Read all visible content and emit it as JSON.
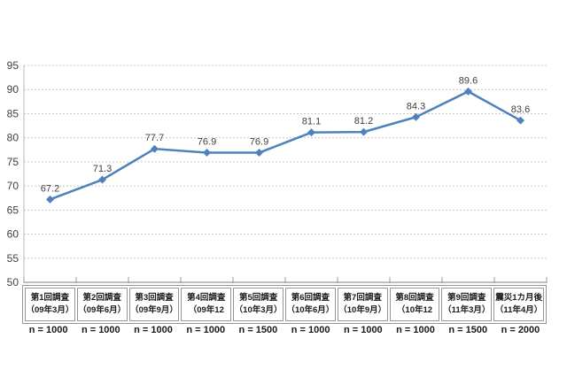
{
  "chart_data": {
    "type": "line",
    "title": "",
    "legend": "none",
    "grid": "horizontal-dashed",
    "marker": "diamond",
    "categories": [
      "第1回調査",
      "第2回調査",
      "第3回調査",
      "第4回調査",
      "第5回調査",
      "第6回調査",
      "第7回調査",
      "第8回調査",
      "第9回調査",
      "震災1カ月後"
    ],
    "category_dates": [
      "（09年3月）",
      "（09年6月）",
      "（09年9月）",
      "（09年12",
      "（10年3月）",
      "（10年6月）",
      "（10年9月）",
      "（10年12",
      "（11年3月）",
      "（11年4月）"
    ],
    "sample_sizes": [
      "n = 1000",
      "n = 1000",
      "n = 1000",
      "n = 1000",
      "n = 1500",
      "n = 1000",
      "n = 1000",
      "n = 1000",
      "n = 1500",
      "n = 2000"
    ],
    "values": [
      67.2,
      71.3,
      77.7,
      76.9,
      76.9,
      81.1,
      81.2,
      84.3,
      89.6,
      83.6
    ],
    "data_labels": [
      "67.2",
      "71.3",
      "77.7",
      "76.9",
      "76.9",
      "81.1",
      "81.2",
      "84.3",
      "89.6",
      "83.6"
    ],
    "ylim": [
      50,
      95
    ],
    "ytick_step": 5,
    "ytick_labels": [
      "50",
      "55",
      "60",
      "65",
      "70",
      "75",
      "80",
      "85",
      "90",
      "95"
    ],
    "colors": {
      "line": "#4f81bd",
      "marker": "#4f81bd",
      "data_label": "#404040",
      "axis_label": "#404040",
      "gridline": "#c8c8c8",
      "y_axis_line": "#b8b8b8",
      "x_axis_line": "#7f7f7f",
      "tick": "#9a9a9a",
      "table_border": "#959595",
      "table_text": "#1a1a1a",
      "background": "#ffffff"
    }
  }
}
